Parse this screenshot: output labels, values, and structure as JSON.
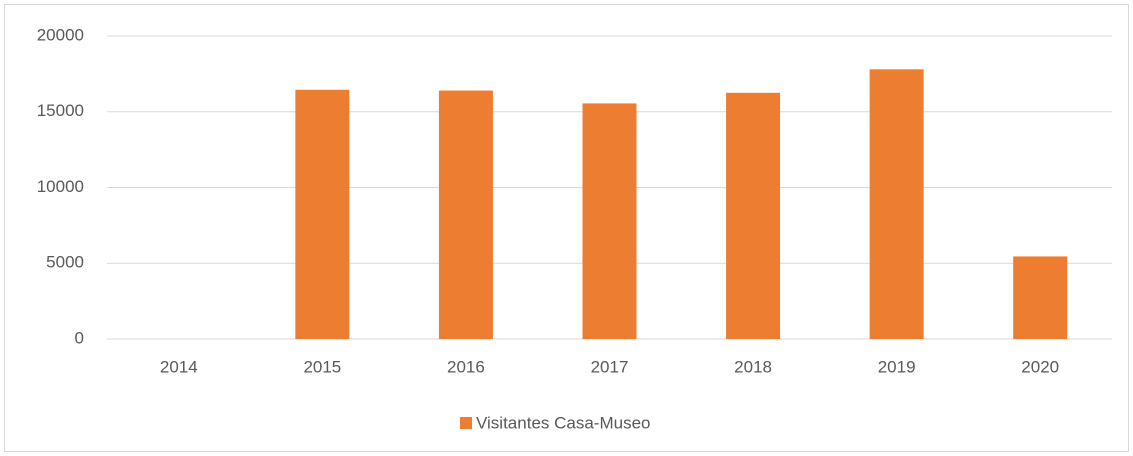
{
  "chart_data": {
    "type": "bar",
    "categories": [
      "2014",
      "2015",
      "2016",
      "2017",
      "2018",
      "2019",
      "2020"
    ],
    "series": [
      {
        "name": "Visitantes Casa-Museo",
        "color": "#ed7d31",
        "values": [
          0,
          16450,
          16400,
          15550,
          16250,
          17800,
          5450
        ]
      }
    ],
    "ylim": [
      0,
      20000
    ],
    "yticks": [
      0,
      5000,
      10000,
      15000,
      20000
    ],
    "grid": true,
    "legend": "bottom"
  }
}
